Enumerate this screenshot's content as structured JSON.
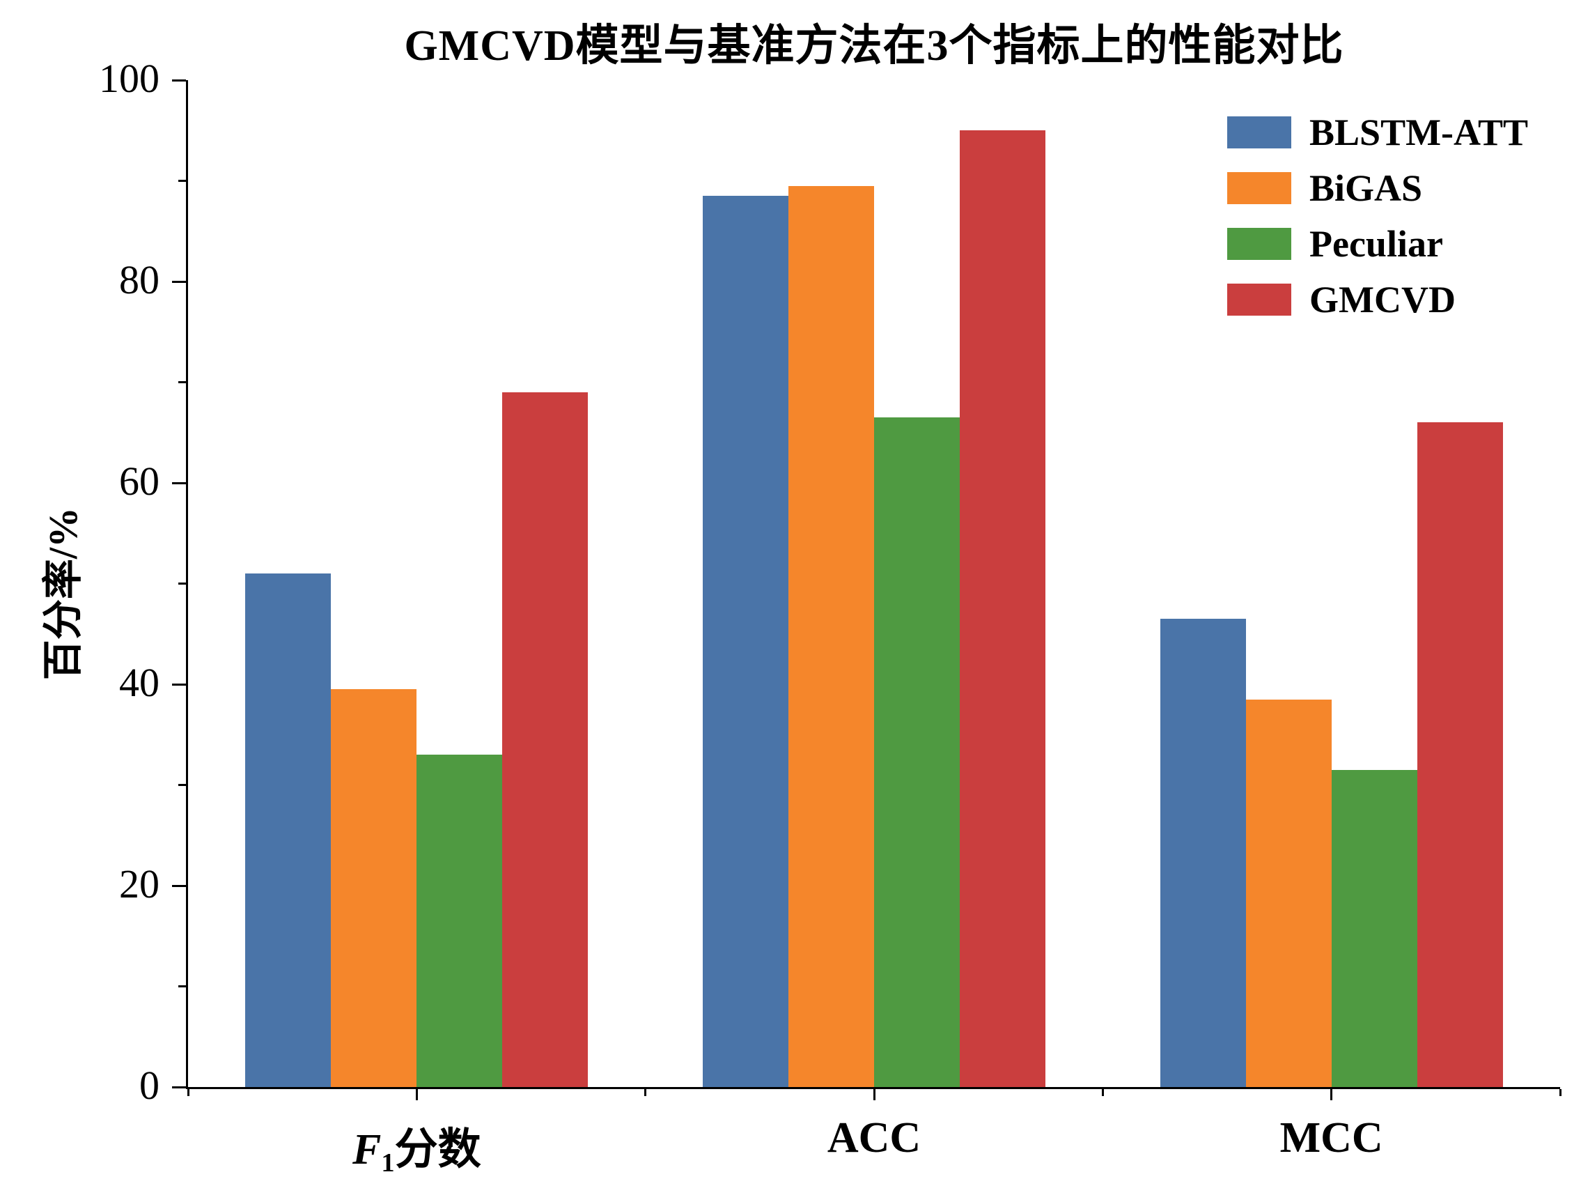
{
  "chart_data": {
    "type": "bar",
    "title": "GMCVD模型与基准方法在3个指标上的性能对比",
    "ylabel": "百分率/%",
    "xlabel": "",
    "ylim": [
      0,
      100
    ],
    "ytick_major_step": 20,
    "ytick_minor_step": 10,
    "ytick_labels": [
      "0",
      "20",
      "40",
      "60",
      "80",
      "100"
    ],
    "grid": false,
    "legend_position": "upper right",
    "categories": [
      "F₁分数",
      "ACC",
      "MCC"
    ],
    "category_segments": [
      [
        {
          "t": "F",
          "s": "italic"
        },
        {
          "t": "1",
          "s": "sub"
        },
        {
          "t": "分数",
          "s": "normal"
        }
      ],
      [
        {
          "t": "ACC",
          "s": "normal"
        }
      ],
      [
        {
          "t": "MCC",
          "s": "normal"
        }
      ]
    ],
    "series": [
      {
        "name": "BLSTM-ATT",
        "color": "#4A74A8",
        "values": [
          51.0,
          88.5,
          46.5
        ]
      },
      {
        "name": "BiGAS",
        "color": "#F5862B",
        "values": [
          39.5,
          89.5,
          38.5
        ]
      },
      {
        "name": "Peculiar",
        "color": "#4F9A41",
        "values": [
          33.0,
          66.5,
          31.5
        ]
      },
      {
        "name": "GMCVD",
        "color": "#CA3E3E",
        "values": [
          69.0,
          95.0,
          66.0
        ]
      }
    ],
    "axis_color": "#000000"
  }
}
